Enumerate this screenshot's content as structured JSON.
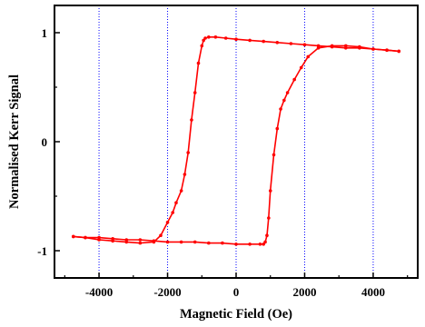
{
  "chart_data": {
    "type": "scatter",
    "title": "",
    "xlabel": "Magnetic Field (Oe)",
    "ylabel": "Normalised Kerr Signal",
    "xlim": [
      -5300,
      5300
    ],
    "ylim": [
      -1.25,
      1.25
    ],
    "x_ticks": [
      -4000,
      -2000,
      0,
      2000,
      4000
    ],
    "x_tick_labels": [
      "-4000",
      "-2000",
      "0",
      "2000",
      "4000"
    ],
    "y_ticks": [
      -1,
      0,
      1
    ],
    "y_tick_labels": [
      "-1",
      "0",
      "1"
    ],
    "grid": "vertical dotted lines at x tick positions",
    "series_color": "#ff0000",
    "grid_color": "#0000ff",
    "series": [
      {
        "name": "",
        "style": "line-with-markers",
        "x": [
          -4750,
          -4400,
          -4000,
          -3600,
          -3200,
          -2800,
          -2400,
          -2200,
          -2000,
          -1850,
          -1750,
          -1600,
          -1500,
          -1400,
          -1300,
          -1200,
          -1100,
          -1000,
          -950,
          -900,
          -800,
          -600,
          -300,
          0,
          400,
          800,
          1200,
          1600,
          2000,
          2400,
          2800,
          3200,
          3600,
          4000,
          4400,
          4750
        ],
        "y": [
          -0.87,
          -0.88,
          -0.9,
          -0.91,
          -0.92,
          -0.93,
          -0.92,
          -0.86,
          -0.74,
          -0.65,
          -0.56,
          -0.45,
          -0.3,
          -0.1,
          0.2,
          0.45,
          0.72,
          0.88,
          0.93,
          0.95,
          0.96,
          0.96,
          0.95,
          0.94,
          0.93,
          0.92,
          0.91,
          0.9,
          0.89,
          0.88,
          0.87,
          0.86,
          0.86,
          0.85,
          0.84,
          0.83
        ]
      },
      {
        "name": "",
        "style": "line-with-markers",
        "x": [
          4750,
          4400,
          4000,
          3600,
          3200,
          2800,
          2400,
          2100,
          1900,
          1700,
          1500,
          1400,
          1300,
          1200,
          1100,
          1000,
          950,
          900,
          850,
          800,
          700,
          400,
          0,
          -400,
          -800,
          -1200,
          -1600,
          -2000,
          -2400,
          -2800,
          -3200,
          -3600,
          -4000,
          -4400,
          -4750
        ],
        "y": [
          0.83,
          0.84,
          0.85,
          0.87,
          0.88,
          0.88,
          0.86,
          0.78,
          0.68,
          0.57,
          0.45,
          0.38,
          0.3,
          0.12,
          -0.12,
          -0.45,
          -0.7,
          -0.86,
          -0.92,
          -0.94,
          -0.94,
          -0.94,
          -0.94,
          -0.93,
          -0.93,
          -0.92,
          -0.92,
          -0.92,
          -0.91,
          -0.9,
          -0.9,
          -0.89,
          -0.88,
          -0.88,
          -0.87
        ]
      }
    ]
  }
}
